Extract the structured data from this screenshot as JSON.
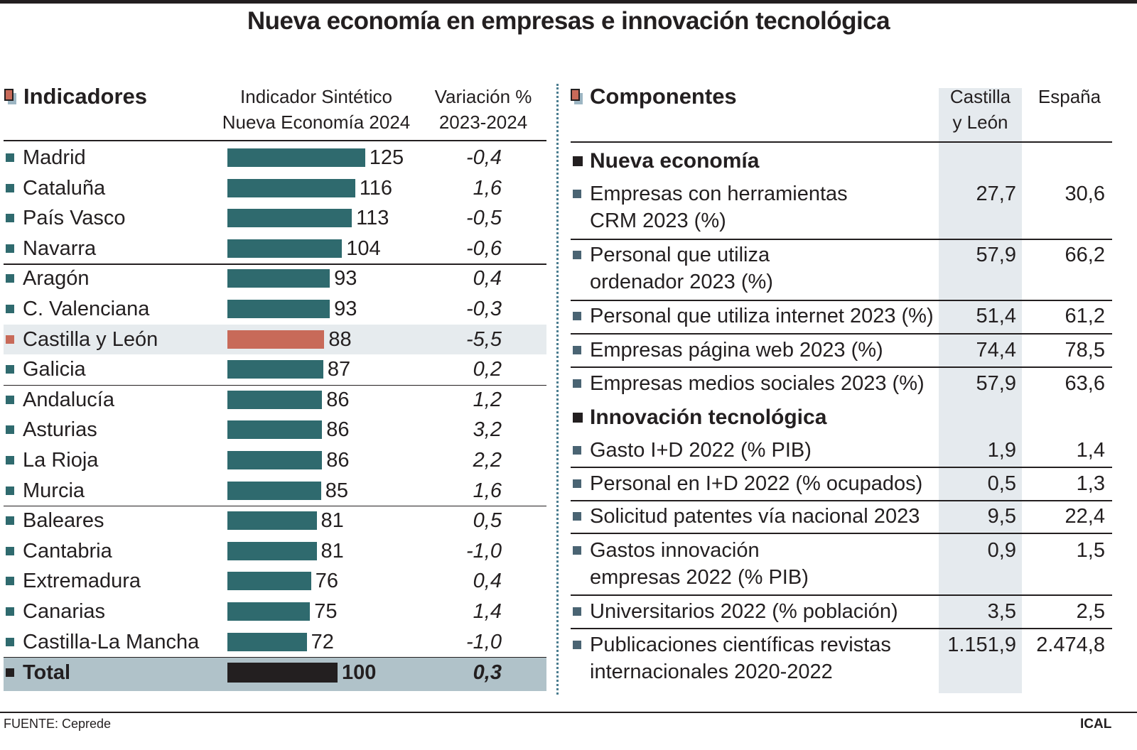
{
  "title": "Nueva economía en empresas e innovación tecnológica",
  "left": {
    "section_title": "Indicadores",
    "col_indicator": [
      "Indicador Sintético",
      "Nueva Economía 2024"
    ],
    "col_variation": [
      "Variación %",
      "2023-2024"
    ]
  },
  "chart_data": {
    "type": "bar",
    "orientation": "horizontal",
    "title": "Indicador Sintético Nueva Economía 2024",
    "categories": [
      "Madrid",
      "Cataluña",
      "País Vasco",
      "Navarra",
      "Aragón",
      "C. Valenciana",
      "Castilla y León",
      "Galicia",
      "Andalucía",
      "Asturias",
      "La Rioja",
      "Murcia",
      "Baleares",
      "Cantabria",
      "Extremadura",
      "Canarias",
      "Castilla-La Mancha",
      "Total"
    ],
    "values": [
      125,
      116,
      113,
      104,
      93,
      93,
      88,
      87,
      86,
      86,
      86,
      85,
      81,
      81,
      76,
      75,
      72,
      100
    ],
    "variation_labels": [
      "-0,4",
      "1,6",
      "-0,5",
      "-0,6",
      "0,4",
      "-0,3",
      "-5,5",
      "0,2",
      "1,2",
      "3,2",
      "2,2",
      "1,6",
      "0,5",
      "-1,0",
      "0,4",
      "1,4",
      "-1,0",
      "0,3"
    ],
    "highlight": "Castilla y León",
    "colors": {
      "default": "#2f6a6e",
      "highlight": "#c86a59",
      "total": "#231f20"
    }
  },
  "right": {
    "section_title": "Componentes",
    "col_cyl": [
      "Castilla",
      "y León"
    ],
    "col_es": "España",
    "groups": [
      {
        "title": "Nueva economía",
        "rows": [
          {
            "label": [
              "Empresas con herramientas",
              "CRM 2023 (%)"
            ],
            "cyl": "27,7",
            "es": "30,6"
          },
          {
            "label": [
              "Personal que utiliza",
              "ordenador 2023  (%)"
            ],
            "cyl": "57,9",
            "es": "66,2"
          },
          {
            "label": [
              "Personal que utiliza internet 2023 (%)"
            ],
            "cyl": "51,4",
            "es": "61,2"
          },
          {
            "label": [
              "Empresas página web 2023 (%)"
            ],
            "cyl": "74,4",
            "es": "78,5"
          },
          {
            "label": [
              "Empresas medios sociales 2023 (%)"
            ],
            "cyl": "57,9",
            "es": "63,6"
          }
        ]
      },
      {
        "title": "Innovación tecnológica",
        "rows": [
          {
            "label": [
              "Gasto I+D 2022 (% PIB)"
            ],
            "cyl": "1,9",
            "es": "1,4"
          },
          {
            "label": [
              "Personal en I+D 2022 (% ocupados)"
            ],
            "cyl": "0,5",
            "es": "1,3"
          },
          {
            "label": [
              "Solicitud patentes vía nacional 2023"
            ],
            "cyl": "9,5",
            "es": "22,4"
          },
          {
            "label": [
              "Gastos innovación",
              "empresas 2022 (% PIB)"
            ],
            "cyl": "0,9",
            "es": "1,5"
          },
          {
            "label": [
              "Universitarios 2022 (% población)"
            ],
            "cyl": "3,5",
            "es": "2,5"
          },
          {
            "label": [
              "Publicaciones científicas revistas",
              "internacionales 2020-2022"
            ],
            "cyl": "1.151,9",
            "es": "2.474,8"
          }
        ]
      }
    ]
  },
  "footer": {
    "source": "FUENTE: Ceprede",
    "brand": "ICAL"
  }
}
